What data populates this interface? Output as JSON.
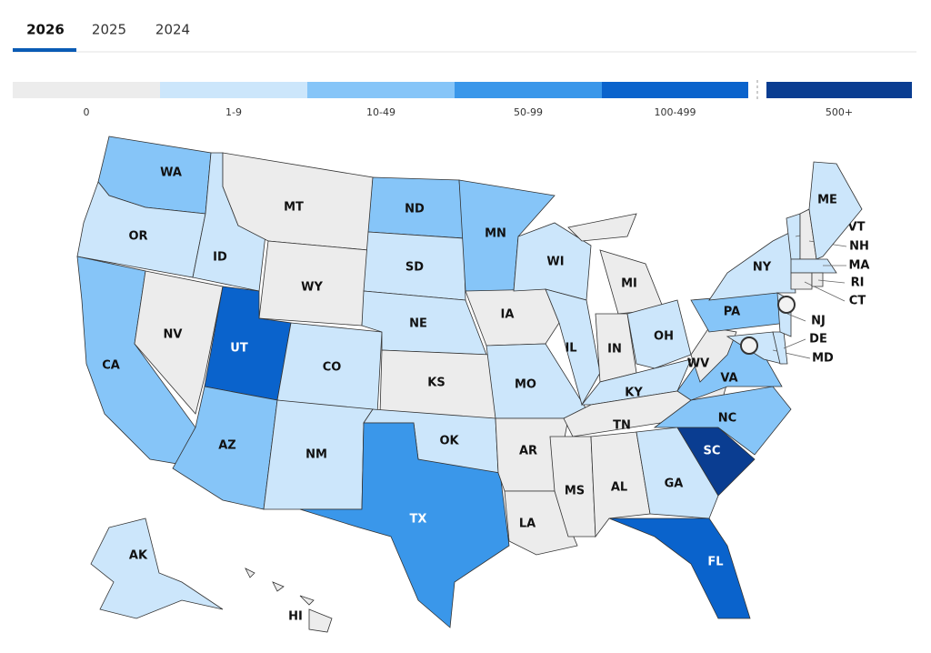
{
  "tabs": [
    "2026",
    "2025",
    "2024"
  ],
  "legend": [
    {
      "label": "0",
      "color": "#ececec"
    },
    {
      "label": "1-9",
      "color": "#cce6fb"
    },
    {
      "label": "10-49",
      "color": "#86c5f8"
    },
    {
      "label": "50-99",
      "color": "#3a97ea"
    },
    {
      "label": "100-499",
      "color": "#0a63cc"
    },
    {
      "label": "500+",
      "color": "#0a3d91"
    }
  ],
  "states": [
    {
      "label": "WA",
      "level": 2
    },
    {
      "label": "OR",
      "level": 1
    },
    {
      "label": "CA",
      "level": 2
    },
    {
      "label": "NV",
      "level": 0
    },
    {
      "label": "ID",
      "level": 1
    },
    {
      "label": "MT",
      "level": 0
    },
    {
      "label": "WY",
      "level": 0
    },
    {
      "label": "UT",
      "level": 4
    },
    {
      "label": "CO",
      "level": 1
    },
    {
      "label": "AZ",
      "level": 2
    },
    {
      "label": "NM",
      "level": 1
    },
    {
      "label": "ND",
      "level": 2
    },
    {
      "label": "SD",
      "level": 1
    },
    {
      "label": "NE",
      "level": 1
    },
    {
      "label": "KS",
      "level": 0
    },
    {
      "label": "OK",
      "level": 1
    },
    {
      "label": "TX",
      "level": 3
    },
    {
      "label": "MN",
      "level": 2
    },
    {
      "label": "IA",
      "level": 0
    },
    {
      "label": "MO",
      "level": 1
    },
    {
      "label": "AR",
      "level": 0
    },
    {
      "label": "LA",
      "level": 0
    },
    {
      "label": "WI",
      "level": 1
    },
    {
      "label": "IL",
      "level": 1
    },
    {
      "label": "MI",
      "level": 0
    },
    {
      "label": "IN",
      "level": 0
    },
    {
      "label": "OH",
      "level": 1
    },
    {
      "label": "KY",
      "level": 1
    },
    {
      "label": "TN",
      "level": 0
    },
    {
      "label": "MS",
      "level": 0
    },
    {
      "label": "AL",
      "level": 0
    },
    {
      "label": "GA",
      "level": 1
    },
    {
      "label": "FL",
      "level": 4
    },
    {
      "label": "SC",
      "level": 5
    },
    {
      "label": "NC",
      "level": 2
    },
    {
      "label": "VA",
      "level": 2
    },
    {
      "label": "WV",
      "level": 0
    },
    {
      "label": "PA",
      "level": 2
    },
    {
      "label": "NY",
      "level": 1
    },
    {
      "label": "MD",
      "level": 1
    },
    {
      "label": "DE",
      "level": 1
    },
    {
      "label": "NJ",
      "level": 1
    },
    {
      "label": "VT",
      "level": 1
    },
    {
      "label": "NH",
      "level": 0
    },
    {
      "label": "ME",
      "level": 1
    },
    {
      "label": "MA",
      "level": 1
    },
    {
      "label": "CT",
      "level": 0
    },
    {
      "label": "RI",
      "level": 0
    },
    {
      "label": "AK",
      "level": 1
    },
    {
      "label": "HI",
      "level": 0
    }
  ]
}
